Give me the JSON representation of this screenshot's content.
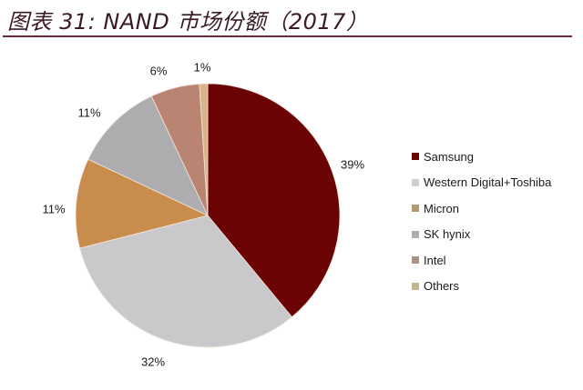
{
  "title": "图表 31: NAND 市场份额（2017）",
  "colors": {
    "title": "#3a1a28",
    "rule": "#6b2a34"
  },
  "chart_data": {
    "type": "pie",
    "title": "图表 31: NAND 市场份额（2017）",
    "start_angle_deg": 0,
    "direction": "clockwise",
    "legend_position": "right",
    "categories": [
      "Samsung",
      "Western Digital+Toshiba",
      "Micron",
      "SK hynix",
      "Intel",
      "Others"
    ],
    "values": [
      39,
      32,
      11,
      11,
      6,
      1
    ],
    "labels": [
      "39%",
      "32%",
      "11%",
      "11%",
      "6%",
      "1%"
    ],
    "colors": [
      "#6b0203",
      "#c9c8ca",
      "#c88c4c",
      "#adadb0",
      "#b98572",
      "#d9b389"
    ]
  },
  "legend": {
    "items": [
      {
        "label": "Samsung",
        "color": "#6b0203"
      },
      {
        "label": "Western Digital+Toshiba",
        "color": "#cfcfd1"
      },
      {
        "label": "Micron",
        "color": "#b49a72"
      },
      {
        "label": "SK hynix",
        "color": "#adadb0"
      },
      {
        "label": "Intel",
        "color": "#a89488"
      },
      {
        "label": "Others",
        "color": "#c4b493"
      }
    ]
  }
}
